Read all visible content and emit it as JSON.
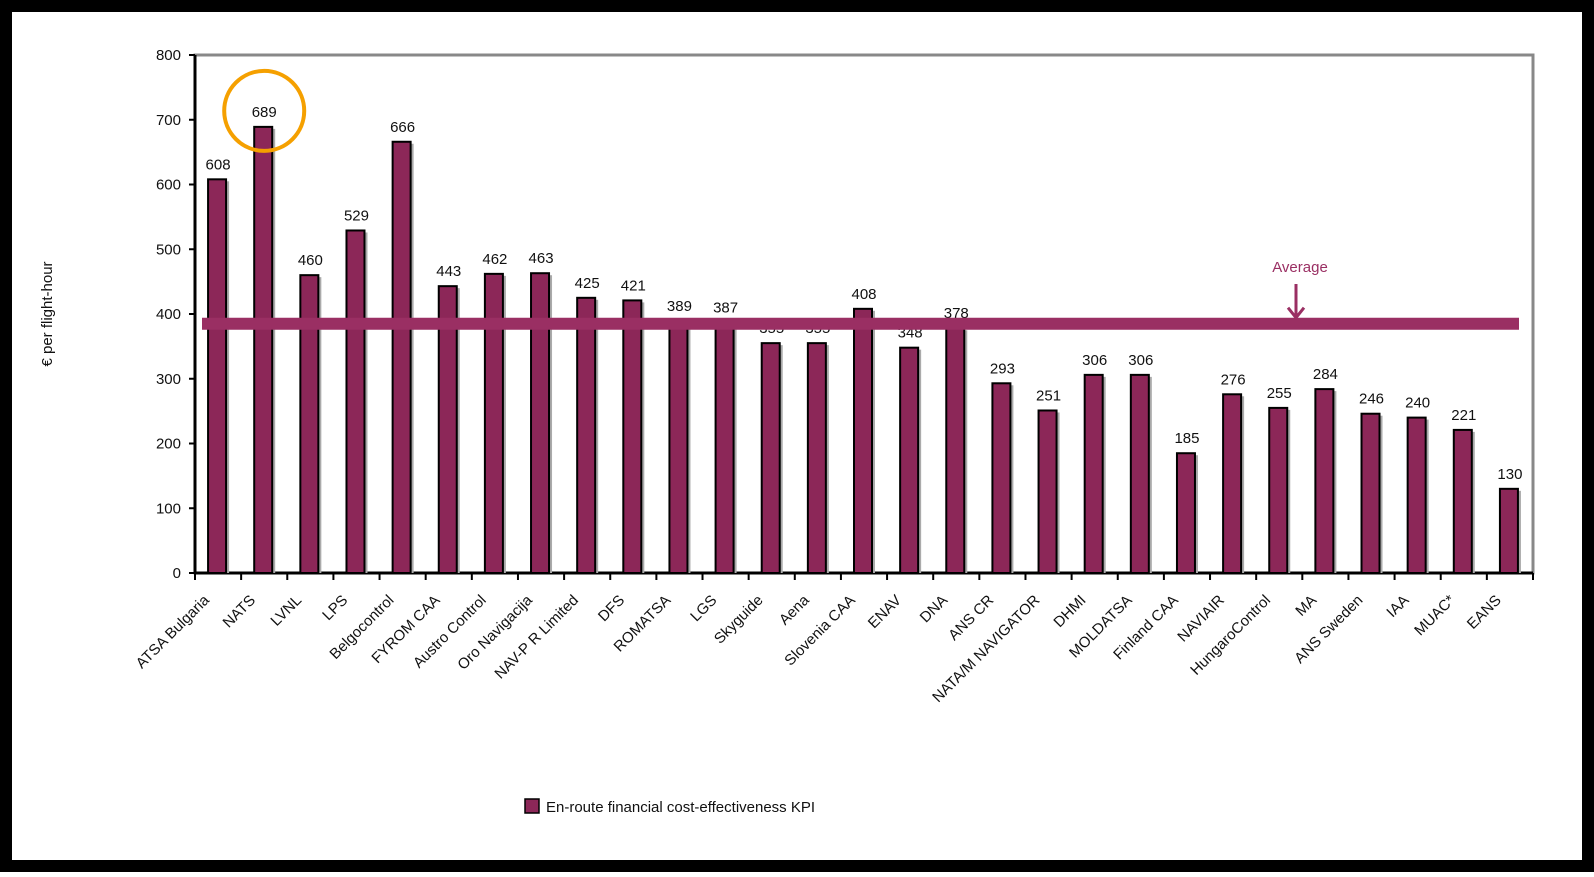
{
  "chart_data": {
    "type": "bar",
    "y_label": "€ per flight-hour",
    "categories": [
      "ATSA Bulgaria",
      "NATS",
      "LVNL",
      "LPS",
      "Belgocontrol",
      "FYROM CAA",
      "Austro Control",
      "Oro Navigacija",
      "NAV-P R Limited",
      "DFS",
      "ROMATSA",
      "LGS",
      "Skyguide",
      "Aena",
      "Slovenia CAA",
      "ENAV",
      "DNA",
      "ANS CR",
      "NATA/M NAVIGATOR",
      "DHMI",
      "MOLDATSA",
      "Finland CAA",
      "NAVIAIR",
      "HungaroControl",
      "MA",
      "ANS Sweden",
      "IAA",
      "MUAC*",
      "EANS"
    ],
    "series": [
      {
        "name": "En-route financial cost-effectiveness KPI",
        "color": "#8c2758",
        "values": [
          608,
          689,
          460,
          529,
          666,
          443,
          462,
          463,
          425,
          421,
          389,
          387,
          355,
          355,
          408,
          348,
          378,
          293,
          251,
          306,
          306,
          185,
          276,
          255,
          284,
          246,
          240,
          221,
          130
        ]
      }
    ],
    "average": {
      "label": "Average",
      "value": 385,
      "color": "#9a2f63"
    },
    "ylim": [
      0,
      800
    ],
    "yticks": [
      0,
      100,
      200,
      300,
      400,
      500,
      600,
      700,
      800
    ],
    "highlight_color": "#f5a000"
  }
}
